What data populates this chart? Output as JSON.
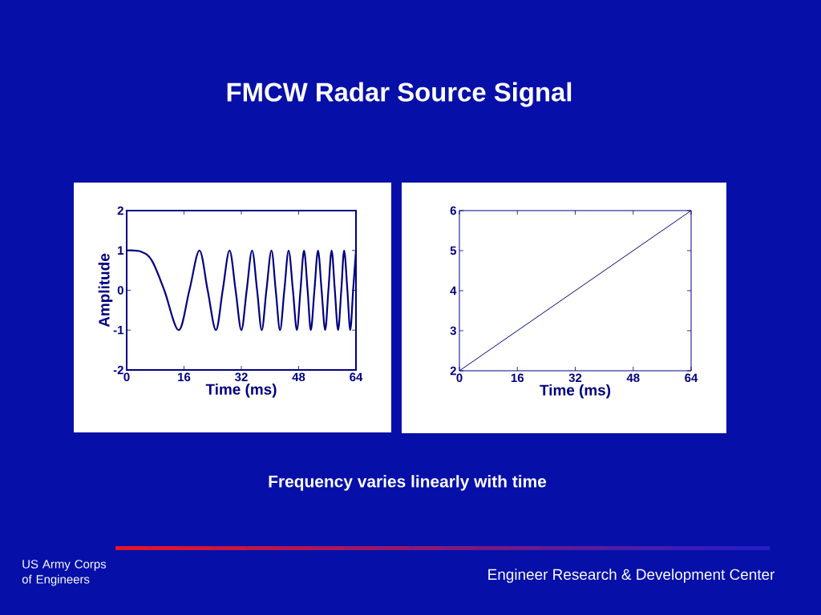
{
  "chart_data": [
    {
      "type": "line",
      "title": "FMCW Radar Source Signal",
      "xlabel": "Time (ms)",
      "ylabel": "Amplitude",
      "color": "#000080",
      "x": [
        0,
        4,
        7,
        10.5,
        14.5,
        17.5,
        20.3,
        22.6,
        24.9,
        26.8,
        28.7,
        30.4,
        32.0,
        33.5,
        35.0,
        36.4,
        37.7,
        39.0,
        40.4,
        41.6,
        42.8,
        44.0,
        45.2,
        46.4,
        47.5,
        48.5,
        49.5,
        50.5,
        51.4,
        52.4,
        53.4,
        54.4,
        55.4,
        56.3,
        57.2,
        58.1,
        59.0,
        59.9,
        60.7,
        61.6,
        62.4,
        63.2,
        64
      ],
      "values": [
        1,
        0.97,
        0.75,
        0,
        -1,
        0,
        1,
        0,
        -1,
        0,
        1,
        0,
        -1,
        0,
        1,
        0,
        -1,
        0,
        1,
        0,
        -1,
        0,
        1,
        0,
        -1,
        0,
        1,
        0,
        -1,
        0,
        1,
        0,
        -1,
        0,
        1,
        0,
        -1,
        0,
        1,
        0,
        -1,
        0,
        1
      ],
      "xlim": [
        0,
        64
      ],
      "ylim": [
        -2,
        2
      ],
      "xticks": [
        0,
        16,
        32,
        48,
        64
      ],
      "yticks": [
        -2,
        -1,
        0,
        1,
        2
      ],
      "annotations": [
        "Frequency varies linearly with time",
        "US Army Corps of Engineers",
        "Engineer Research & Development Center"
      ]
    },
    {
      "type": "line",
      "xlabel": "Time (ms)",
      "color": "#000080",
      "x": [
        0,
        64
      ],
      "values": [
        2,
        6
      ],
      "xlim": [
        0,
        64
      ],
      "ylim": [
        2,
        6
      ],
      "xticks": [
        0,
        16,
        32,
        48,
        64
      ],
      "yticks": [
        2,
        3,
        4,
        5,
        6
      ]
    }
  ]
}
